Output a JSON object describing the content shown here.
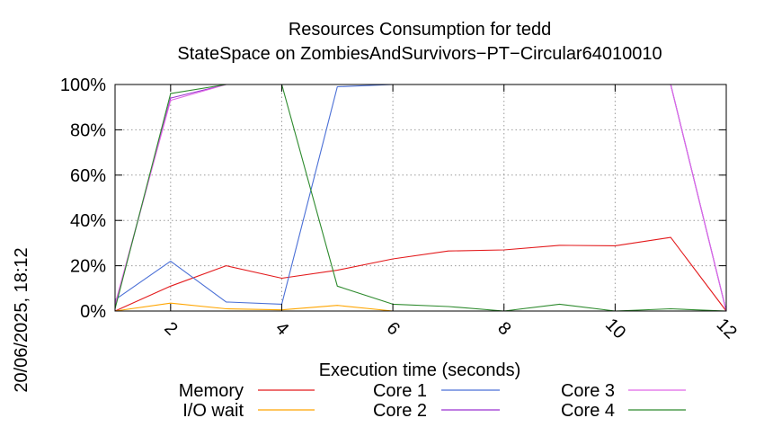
{
  "chart_data": {
    "type": "line",
    "title": "Resources Consumption for tedd",
    "subtitle": "StateSpace on ZombiesAndSurvivors−PT−Circular64010010",
    "xlabel": "Execution time (seconds)",
    "ylabel": "",
    "side_label": "20/06/2025, 18:12",
    "xlim": [
      1,
      12
    ],
    "ylim": [
      0,
      100
    ],
    "x_ticks": [
      2,
      4,
      6,
      8,
      10,
      12
    ],
    "y_ticks": [
      0,
      20,
      40,
      60,
      80,
      100
    ],
    "y_tick_labels": [
      "0%",
      "20%",
      "40%",
      "60%",
      "80%",
      "100%"
    ],
    "grid": true,
    "legend_position": "bottom",
    "x": [
      1,
      2,
      3,
      4,
      5,
      6,
      7,
      8,
      9,
      10,
      11,
      12
    ],
    "series": [
      {
        "name": "Memory",
        "color": "#e31a1c",
        "values": [
          0,
          11,
          20,
          14.5,
          18,
          23,
          26.5,
          27,
          29,
          28.8,
          32.5,
          0
        ]
      },
      {
        "name": "I/O wait",
        "color": "#ffa500",
        "values": [
          0,
          3.5,
          1,
          0.5,
          2.5,
          0,
          0,
          0,
          0,
          0,
          0,
          0
        ]
      },
      {
        "name": "Core 1",
        "color": "#4a6fd6",
        "values": [
          5,
          22,
          4,
          3,
          99,
          100,
          100,
          100,
          100,
          100,
          100,
          0
        ]
      },
      {
        "name": "Core 2",
        "color": "#9b30d0",
        "values": [
          2,
          94,
          100,
          100,
          100,
          100,
          100,
          100,
          100,
          100,
          100,
          0
        ]
      },
      {
        "name": "Core 3",
        "color": "#e066e6",
        "values": [
          3,
          93,
          100,
          100,
          100,
          100,
          100,
          100,
          100,
          100,
          100,
          0
        ]
      },
      {
        "name": "Core 4",
        "color": "#2d8a2d",
        "values": [
          1,
          96,
          100,
          100,
          11,
          3,
          2,
          0,
          3,
          0,
          1,
          0
        ]
      }
    ]
  }
}
